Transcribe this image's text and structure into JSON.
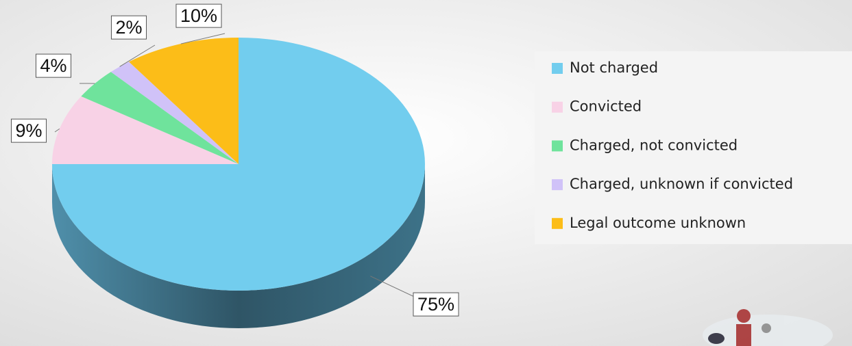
{
  "chart_data": {
    "type": "pie",
    "categories": [
      "Not charged",
      "Convicted",
      "Charged, not convicted",
      "Charged, unknown if convicted",
      "Legal outcome unknown"
    ],
    "values": [
      75,
      9,
      4,
      2,
      10
    ],
    "value_labels": [
      "75%",
      "9%",
      "4%",
      "2%",
      "10%"
    ],
    "colors": [
      "#72cdee",
      "#f8d2e6",
      "#6fe39c",
      "#d0c2f8",
      "#fcbd18"
    ],
    "legend": "right"
  }
}
